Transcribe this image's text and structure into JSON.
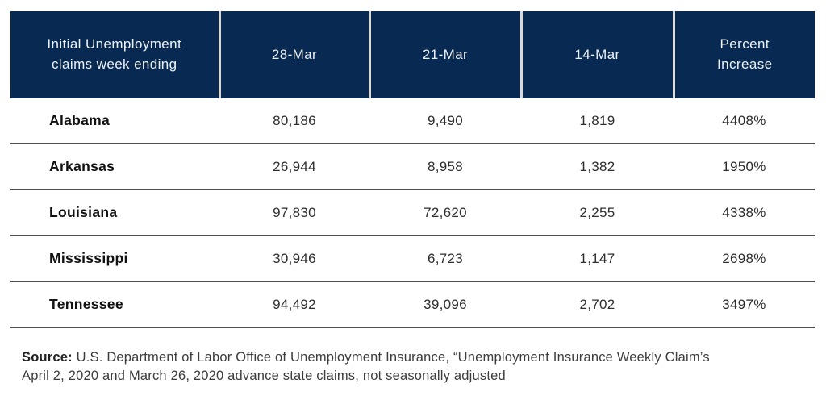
{
  "figure": {
    "header": {
      "claims_week_label": "Initial Unemployment\nclaims week ending",
      "col_28mar": "28-Mar",
      "col_21mar": "21-Mar",
      "col_14mar": "14-Mar",
      "col_percent": "Percent\nIncrease"
    },
    "source": {
      "label": "Source:",
      "text": "U.S. Department of Labor Office of Unemployment Insurance, “Unemployment Insurance Weekly Claim’s\nApril 2, 2020 and March 26, 2020 advance state claims, not seasonally adjusted"
    },
    "colors": {
      "header_bg": "#082A52",
      "header_text": "#EDF1F6",
      "header_divider": "#D9D9D9",
      "row_divider": "#4F4F4F",
      "state_text": "#111111",
      "value_text": "#2E2E2E",
      "source_text": "#3C3C3C"
    }
  },
  "chart_data": {
    "type": "table",
    "title": "Initial Unemployment claims week ending",
    "columns": [
      "Initial Unemployment claims week ending",
      "28-Mar",
      "21-Mar",
      "14-Mar",
      "Percent Increase"
    ],
    "rows": [
      {
        "state": "Alabama",
        "mar28": "80,186",
        "mar21": "9,490",
        "mar14": "1,819",
        "percent_increase": "4408%"
      },
      {
        "state": "Arkansas",
        "mar28": "26,944",
        "mar21": "8,958",
        "mar14": "1,382",
        "percent_increase": "1950%"
      },
      {
        "state": "Louisiana",
        "mar28": "97,830",
        "mar21": "72,620",
        "mar14": "2,255",
        "percent_increase": "4338%"
      },
      {
        "state": "Mississippi",
        "mar28": "30,946",
        "mar21": "6,723",
        "mar14": "1,147",
        "percent_increase": "2698%"
      },
      {
        "state": "Tennessee",
        "mar28": "94,492",
        "mar21": "39,096",
        "mar14": "2,702",
        "percent_increase": "3497%"
      }
    ]
  }
}
